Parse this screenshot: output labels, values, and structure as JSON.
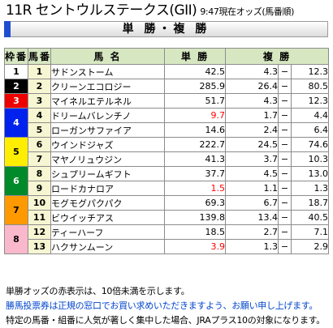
{
  "header": {
    "race_title": "11R セントウルステークス(GII)",
    "timestamp_note": "9:47現在オッズ(馬番順)"
  },
  "section_title": "単 勝・複 勝",
  "columns": {
    "waku": "枠番",
    "umaban": "馬番",
    "name": "馬 名",
    "win": "単 勝",
    "place": "複 勝"
  },
  "place_separator": "−",
  "waku_colors": {
    "1": {
      "bg": "#ffffff",
      "fg": "#000000"
    },
    "2": {
      "bg": "#000000",
      "fg": "#ffffff"
    },
    "3": {
      "bg": "#ee0000",
      "fg": "#ffffff"
    },
    "4": {
      "bg": "#0022ee",
      "fg": "#ffffff"
    },
    "5": {
      "bg": "#ffee00",
      "fg": "#000000"
    },
    "6": {
      "bg": "#008a2a",
      "fg": "#ffffff"
    },
    "7": {
      "bg": "#ff9900",
      "fg": "#000000"
    },
    "8": {
      "bg": "#f9b8cc",
      "fg": "#000000"
    }
  },
  "favorite_color": "#ff0000",
  "rows": [
    {
      "waku": "1",
      "umaban": "1",
      "name": "サドンストーム",
      "win": "42.5",
      "place_min": "4.3",
      "place_max": "12.3",
      "fav": false
    },
    {
      "waku": "2",
      "umaban": "2",
      "name": "クリーンエコロジー",
      "win": "285.9",
      "place_min": "26.4",
      "place_max": "80.5",
      "fav": false
    },
    {
      "waku": "3",
      "umaban": "3",
      "name": "マイネルエテルネル",
      "win": "51.7",
      "place_min": "4.3",
      "place_max": "12.3",
      "fav": false
    },
    {
      "waku": "4",
      "umaban": "4",
      "name": "ドリームバレンチノ",
      "win": "9.7",
      "place_min": "1.7",
      "place_max": "4.4",
      "fav": true
    },
    {
      "waku": "4",
      "umaban": "5",
      "name": "ローガンサファイア",
      "win": "14.6",
      "place_min": "2.4",
      "place_max": "6.4",
      "fav": false
    },
    {
      "waku": "5",
      "umaban": "6",
      "name": "ウインドジャズ",
      "win": "222.7",
      "place_min": "24.5",
      "place_max": "74.6",
      "fav": false
    },
    {
      "waku": "5",
      "umaban": "7",
      "name": "マヤノリュウジン",
      "win": "41.3",
      "place_min": "3.7",
      "place_max": "10.3",
      "fav": false
    },
    {
      "waku": "6",
      "umaban": "8",
      "name": "シュプリームギフト",
      "win": "37.7",
      "place_min": "4.5",
      "place_max": "13.0",
      "fav": false
    },
    {
      "waku": "6",
      "umaban": "9",
      "name": "ロードカナロア",
      "win": "1.5",
      "place_min": "1.1",
      "place_max": "1.3",
      "fav": true
    },
    {
      "waku": "7",
      "umaban": "10",
      "name": "モグモグパクパク",
      "win": "69.3",
      "place_min": "6.7",
      "place_max": "18.7",
      "fav": false
    },
    {
      "waku": "7",
      "umaban": "11",
      "name": "ビウイッチアス",
      "win": "139.8",
      "place_min": "13.4",
      "place_max": "40.5",
      "fav": false
    },
    {
      "waku": "8",
      "umaban": "12",
      "name": "ティーハーフ",
      "win": "18.5",
      "place_min": "2.7",
      "place_max": "7.1",
      "fav": false
    },
    {
      "waku": "8",
      "umaban": "13",
      "name": "ハクサンムーン",
      "win": "3.9",
      "place_min": "1.3",
      "place_max": "2.9",
      "fav": true
    }
  ],
  "notes": [
    "単勝オッズの赤表示は、10倍未満を示します。",
    "勝馬投票券は正規の窓口でお買い求めいただきますよう、お願い申し上げます。",
    "特定の馬番・組番に人気が著しく集中した場合、JRAプラス10の対象になります。"
  ]
}
